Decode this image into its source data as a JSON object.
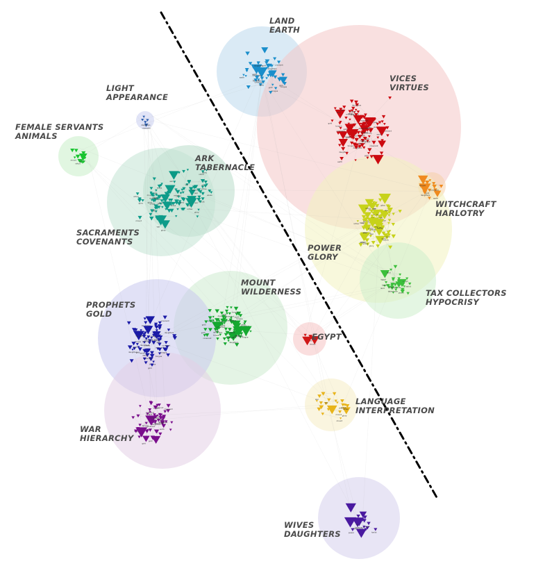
{
  "clusters": [
    {
      "id": "land-earth",
      "lines": [
        "LAND",
        "EARTH"
      ],
      "color": "#bcd9ec",
      "node_color": "#1a8ecb"
    },
    {
      "id": "vices-virtues",
      "lines": [
        "VICES",
        "VIRTUES"
      ],
      "color": "#f4c6c6",
      "node_color": "#cc0a10"
    },
    {
      "id": "light-appearance",
      "lines": [
        "LIGHT",
        "APPEARANCE"
      ],
      "color": "#c9cdf0",
      "node_color": "#2e5fb0"
    },
    {
      "id": "female-servants-animals",
      "lines": [
        "FEMALE SERVANTS",
        "ANIMALS"
      ],
      "color": "#c9efc9",
      "node_color": "#19c430"
    },
    {
      "id": "ark-tabernacle",
      "lines": [
        "ARK",
        "TABERNACLE"
      ],
      "color": "#b9ddca",
      "node_color": "#0a9a86"
    },
    {
      "id": "sacraments-covenants",
      "lines": [
        "SACRAMENTS",
        "COVENANTS"
      ],
      "color": "#c3e4d4",
      "node_color": "#0e9c8a"
    },
    {
      "id": "witchcraft-harlotry",
      "lines": [
        "WITCHCRAFT",
        "HARLOTRY"
      ],
      "color": "#f6cfa8",
      "node_color": "#f08a1e"
    },
    {
      "id": "power-glory",
      "lines": [
        "POWER",
        "GLORY"
      ],
      "color": "#f3f3c0",
      "node_color": "#c7d21a"
    },
    {
      "id": "tax-collectors-hypocrisy",
      "lines": [
        "TAX COLLECTORS",
        "HYPOCRISY"
      ],
      "color": "#cdeecc",
      "node_color": "#3bbf3b"
    },
    {
      "id": "mount-wilderness",
      "lines": [
        "MOUNT",
        "WILDERNESS"
      ],
      "color": "#cdebd0",
      "node_color": "#15a830"
    },
    {
      "id": "prophets-gold",
      "lines": [
        "PROPHETS",
        "GOLD"
      ],
      "color": "#c8c8ee",
      "node_color": "#1a1aa6"
    },
    {
      "id": "egypt",
      "lines": [
        "EGYPT"
      ],
      "color": "#f5c3c3",
      "node_color": "#d01818"
    },
    {
      "id": "language-interpretation",
      "lines": [
        "LANGUAGE",
        "INTERPRETATION"
      ],
      "color": "#f6ecc4",
      "node_color": "#e8b41a"
    },
    {
      "id": "war-hierarchy",
      "lines": [
        "WAR",
        "HIERARCHY"
      ],
      "color": "#e3cfe6",
      "node_color": "#7a0e8c"
    },
    {
      "id": "wives-daughters",
      "lines": [
        "WIVES",
        "DAUGHTERS"
      ],
      "color": "#d6d0ec",
      "node_color": "#4a1aa0"
    }
  ],
  "node_words": [
    "tabernacle",
    "covenant",
    "glory",
    "power",
    "daughters",
    "wives",
    "egypt",
    "gold",
    "mount",
    "land",
    "earth",
    "virtue",
    "harlot",
    "tongue",
    "war"
  ],
  "divider": {
    "style": "dash-dot",
    "color": "#000000"
  }
}
